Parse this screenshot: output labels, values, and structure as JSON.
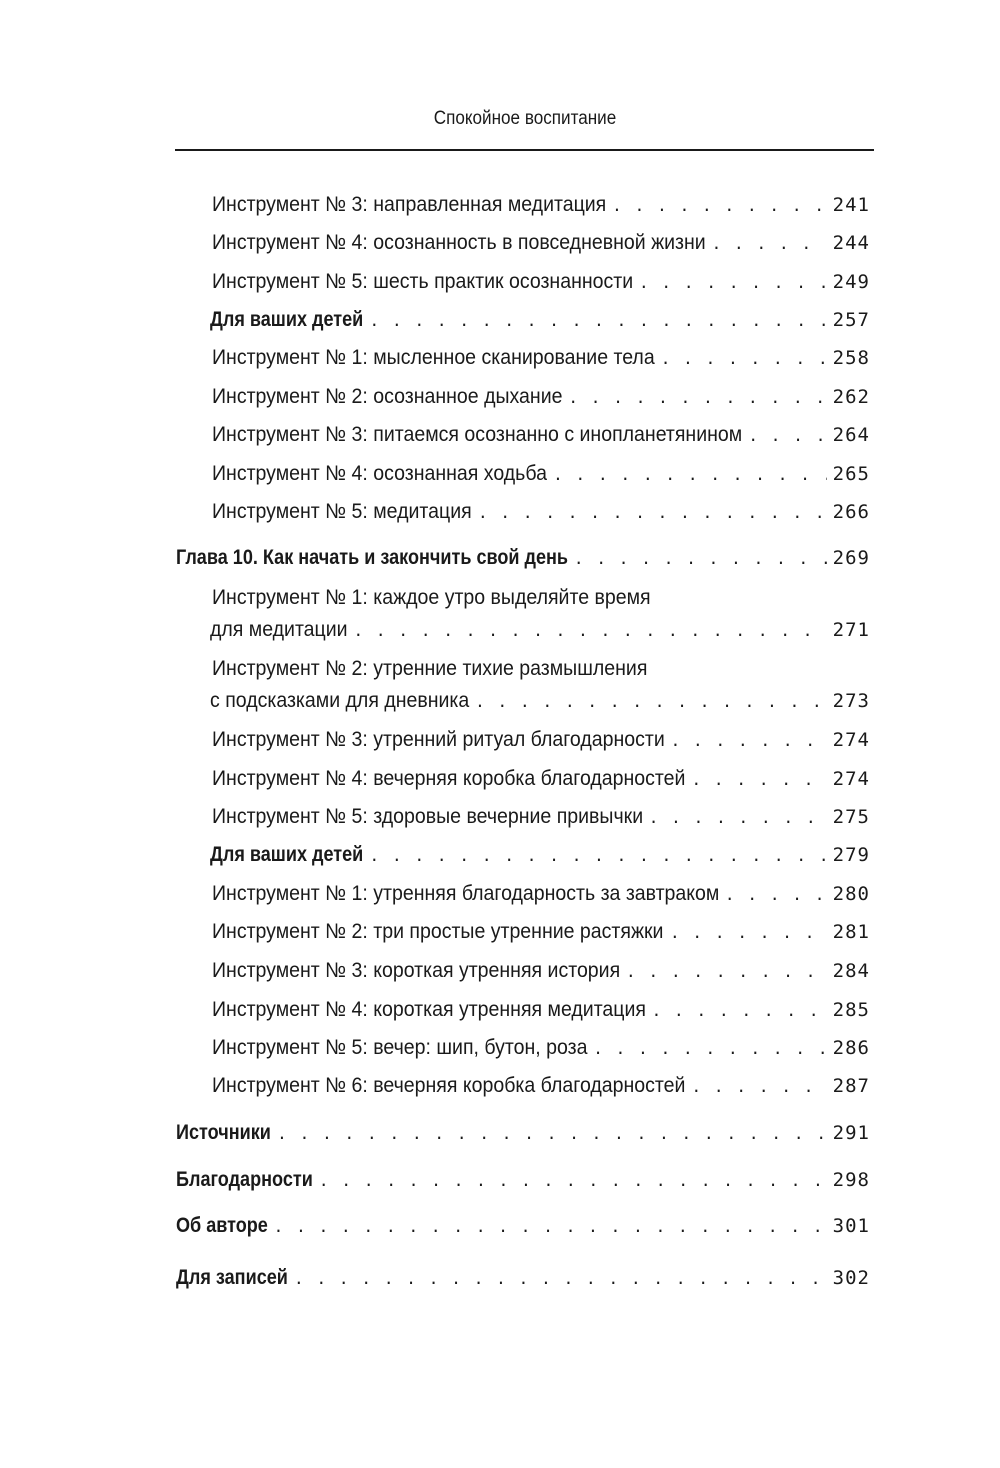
{
  "header": {
    "running_title": "Спокойное воспитание"
  },
  "toc": [
    {
      "level": 2,
      "title": "Инструмент № 3: направленная медитация",
      "page": "241"
    },
    {
      "level": 2,
      "title": "Инструмент № 4: осознанность в повседневной жизни",
      "page": "244"
    },
    {
      "level": 2,
      "title": "Инструмент № 5: шесть практик осознанности",
      "page": "249"
    },
    {
      "level": 1,
      "title": "Для ваших детей",
      "page": "257"
    },
    {
      "level": 2,
      "title": "Инструмент № 1: мысленное сканирование тела",
      "page": "258"
    },
    {
      "level": 2,
      "title": "Инструмент № 2: осознанное дыхание",
      "page": "262"
    },
    {
      "level": 2,
      "title": "Инструмент № 3: питаемся осознанно с инопланетянином",
      "page": "264"
    },
    {
      "level": 2,
      "title": "Инструмент № 4: осознанная ходьба",
      "page": "265"
    },
    {
      "level": 2,
      "title": "Инструмент № 5: медитация",
      "page": "266"
    },
    {
      "level": 0,
      "title": "Глава 10. Как начать и закончить свой день",
      "page": "269"
    },
    {
      "level": 2,
      "title": "Инструмент № 1: каждое утро выделяйте время",
      "title2": "для медитации",
      "page": "271"
    },
    {
      "level": 2,
      "title": "Инструмент № 2: утренние тихие размышления",
      "title2": "с подсказками для дневника",
      "page": "273"
    },
    {
      "level": 2,
      "title": "Инструмент № 3: утренний ритуал благодарности",
      "page": "274"
    },
    {
      "level": 2,
      "title": "Инструмент № 4: вечерняя коробка благодарностей",
      "page": "274"
    },
    {
      "level": 2,
      "title": "Инструмент № 5: здоровые вечерние привычки",
      "page": "275"
    },
    {
      "level": 1,
      "title": "Для ваших детей",
      "page": "279"
    },
    {
      "level": 2,
      "title": "Инструмент № 1: утренняя благодарность за завтраком",
      "page": "280"
    },
    {
      "level": 2,
      "title": "Инструмент № 2: три простые утренние растяжки",
      "page": "281"
    },
    {
      "level": 2,
      "title": "Инструмент № 3: короткая утренняя история",
      "page": "284"
    },
    {
      "level": 2,
      "title": "Инструмент № 4: короткая утренняя медитация",
      "page": "285"
    },
    {
      "level": 2,
      "title": "Инструмент № 5: вечер: шип, бутон, роза",
      "page": "286"
    },
    {
      "level": 2,
      "title": "Инструмент № 6: вечерняя коробка благодарностей",
      "page": "287"
    },
    {
      "level": 0,
      "title": "Источники",
      "page": "291"
    },
    {
      "level": 0,
      "title": "Благодарности",
      "page": "298"
    },
    {
      "level": 0,
      "title": "Об авторе",
      "page": "301"
    },
    {
      "level": 0,
      "title": "Для записей",
      "page": "302"
    }
  ]
}
